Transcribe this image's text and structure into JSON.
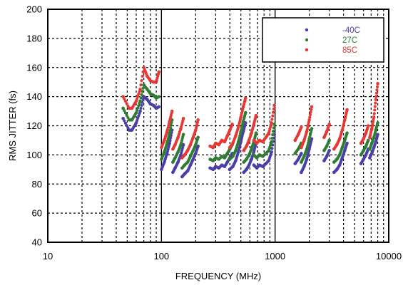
{
  "chart_data": {
    "type": "scatter",
    "title": "",
    "xlabel": "FREQUENCY (MHz)",
    "ylabel": "RMS JITTER (fs)",
    "x_scale": "log",
    "xlim": [
      10,
      10000
    ],
    "ylim": [
      40,
      200
    ],
    "x_ticks": [
      10,
      100,
      1000,
      10000
    ],
    "x_tick_labels": [
      "10",
      "100",
      "1000",
      "10000"
    ],
    "y_ticks": [
      40,
      60,
      80,
      100,
      120,
      140,
      160,
      180,
      200
    ],
    "y_tick_labels": [
      "40",
      "60",
      "80",
      "100",
      "120",
      "140",
      "160",
      "180",
      "200"
    ],
    "grid": "dotted",
    "legend_position": "top-right",
    "series": [
      {
        "name": "-40C",
        "color": "#4a3fa8",
        "segments": [
          {
            "x": [
              46,
              52,
              55,
              60,
              65,
              70,
              75,
              80,
              85,
              90,
              95
            ],
            "y": [
              125,
              117,
              117,
              122,
              130,
              140,
              138,
              135,
              134,
              132,
              133
            ]
          },
          {
            "x": [
              100,
              106,
              112,
              118,
              124
            ],
            "y": [
              90,
              95,
              101,
              108,
              117
            ]
          },
          {
            "x": [
              126,
              132,
              140,
              148,
              156
            ],
            "y": [
              88,
              91,
              95,
              100,
              107
            ]
          },
          {
            "x": [
              152,
              160,
              170,
              180,
              190,
              200,
              210
            ],
            "y": [
              85,
              87,
              89,
              93,
              97,
              101,
              106
            ]
          },
          {
            "x": [
              268,
              285,
              300,
              320,
              340,
              360,
              380,
              400,
              420
            ],
            "y": [
              91,
              90,
              92,
              91,
              93,
              92,
              95,
              98,
              101
            ]
          },
          {
            "x": [
              398,
              425,
              450,
              475,
              500,
              525,
              550
            ],
            "y": [
              90,
              92,
              96,
              102,
              109,
              116,
              122
            ]
          },
          {
            "x": [
              530,
              560,
              590,
              620,
              650,
              680
            ],
            "y": [
              88,
              90,
              93,
              97,
              102,
              108
            ]
          },
          {
            "x": [
              650,
              690,
              730,
              780,
              830,
              880,
              930,
              985
            ],
            "y": [
              93,
              91,
              93,
              92,
              94,
              96,
              102,
              114
            ]
          },
          {
            "x": [
              1700,
              1800,
              1900,
              2000,
              2100
            ],
            "y": [
              88,
              92,
              97,
              104,
              111
            ]
          },
          {
            "x": [
              1500,
              1600,
              1700
            ],
            "y": [
              94,
              97,
              101
            ]
          },
          {
            "x": [
              3300,
              3500,
              3700,
              3900,
              4100,
              4300
            ],
            "y": [
              88,
              90,
              93,
              98,
              103,
              108
            ]
          },
          {
            "x": [
              2700,
              2850,
              3000
            ],
            "y": [
              96,
              99,
              103
            ]
          },
          {
            "x": [
              5700,
              6000,
              6300,
              6600
            ],
            "y": [
              94,
              97,
              100,
              104
            ]
          },
          {
            "x": [
              6800,
              7100,
              7400,
              7700,
              8000
            ],
            "y": [
              98,
              101,
              105,
              109,
              114
            ]
          }
        ]
      },
      {
        "name": "27C",
        "color": "#2e7d32",
        "segments": [
          {
            "x": [
              46,
              52,
              55,
              60,
              65,
              70,
              75,
              80,
              85,
              90,
              95
            ],
            "y": [
              132,
              124,
              124,
              129,
              137,
              148,
              145,
              142,
              141,
              139,
              140
            ]
          },
          {
            "x": [
              100,
              106,
              112,
              118,
              124
            ],
            "y": [
              97,
              102,
              108,
              115,
              124
            ]
          },
          {
            "x": [
              126,
              132,
              140,
              148,
              156
            ],
            "y": [
              95,
              98,
              102,
              107,
              114
            ]
          },
          {
            "x": [
              152,
              160,
              170,
              180,
              190,
              200,
              210
            ],
            "y": [
              91,
              93,
              95,
              99,
              103,
              107,
              112
            ]
          },
          {
            "x": [
              268,
              285,
              300,
              320,
              340,
              360,
              380,
              400,
              420
            ],
            "y": [
              97,
              96,
              98,
              97,
              99,
              98,
              101,
              104,
              107
            ]
          },
          {
            "x": [
              398,
              425,
              450,
              475,
              500,
              525,
              550
            ],
            "y": [
              97,
              99,
              103,
              109,
              116,
              123,
              129
            ]
          },
          {
            "x": [
              530,
              560,
              590,
              620,
              650,
              680
            ],
            "y": [
              95,
              97,
              100,
              104,
              109,
              115
            ]
          },
          {
            "x": [
              650,
              690,
              730,
              780,
              830,
              880,
              930,
              985
            ],
            "y": [
              100,
              98,
              100,
              99,
              101,
              103,
              109,
              121
            ]
          },
          {
            "x": [
              1700,
              1800,
              1900,
              2000,
              2100
            ],
            "y": [
              95,
              99,
              104,
              111,
              118
            ]
          },
          {
            "x": [
              1500,
              1600,
              1700
            ],
            "y": [
              101,
              104,
              108
            ]
          },
          {
            "x": [
              3300,
              3500,
              3700,
              3900,
              4100,
              4300
            ],
            "y": [
              95,
              97,
              100,
              105,
              110,
              115
            ]
          },
          {
            "x": [
              2700,
              2850,
              3000
            ],
            "y": [
              103,
              106,
              110
            ]
          },
          {
            "x": [
              5700,
              6000,
              6300,
              6600
            ],
            "y": [
              100,
              103,
              106,
              110
            ]
          },
          {
            "x": [
              6800,
              7100,
              7400,
              7700,
              8000
            ],
            "y": [
              104,
              108,
              112,
              117,
              122
            ]
          }
        ]
      },
      {
        "name": "85C",
        "color": "#e53935",
        "segments": [
          {
            "x": [
              46,
              52,
              55,
              60,
              65,
              70,
              75,
              80,
              85,
              90,
              95
            ],
            "y": [
              140,
              132,
              132,
              137,
              145,
              160,
              154,
              151,
              150,
              150,
              157
            ]
          },
          {
            "x": [
              100,
              106,
              112,
              118,
              124
            ],
            "y": [
              105,
              110,
              116,
              123,
              130
            ]
          },
          {
            "x": [
              126,
              132,
              140,
              148,
              156
            ],
            "y": [
              104,
              107,
              112,
              118,
              125
            ]
          },
          {
            "x": [
              152,
              160,
              170,
              180,
              190,
              200,
              210
            ],
            "y": [
              98,
              100,
              103,
              107,
              112,
              117,
              124
            ]
          },
          {
            "x": [
              268,
              285,
              300,
              320,
              340,
              360,
              380,
              400,
              420
            ],
            "y": [
              106,
              105,
              108,
              107,
              110,
              109,
              113,
              117,
              121
            ]
          },
          {
            "x": [
              398,
              425,
              450,
              475,
              500,
              525,
              550
            ],
            "y": [
              105,
              108,
              113,
              119,
              126,
              133,
              139
            ]
          },
          {
            "x": [
              530,
              560,
              590,
              620,
              650,
              680
            ],
            "y": [
              103,
              106,
              110,
              115,
              121,
              127
            ]
          },
          {
            "x": [
              650,
              690,
              730,
              780,
              830,
              880,
              930,
              985
            ],
            "y": [
              110,
              108,
              110,
              109,
              112,
              115,
              122,
              134
            ]
          },
          {
            "x": [
              1700,
              1800,
              1900,
              2000,
              2100
            ],
            "y": [
              105,
              110,
              116,
              124,
              133
            ]
          },
          {
            "x": [
              1500,
              1600,
              1700
            ],
            "y": [
              110,
              114,
              119
            ]
          },
          {
            "x": [
              3300,
              3500,
              3700,
              3900,
              4100,
              4300
            ],
            "y": [
              104,
              107,
              111,
              117,
              124,
              131
            ]
          },
          {
            "x": [
              2700,
              2850,
              3000
            ],
            "y": [
              112,
              116,
              121
            ]
          },
          {
            "x": [
              5700,
              6000,
              6300,
              6600
            ],
            "y": [
              108,
              111,
              115,
              120
            ]
          },
          {
            "x": [
              6800,
              7100,
              7400,
              7700,
              8000
            ],
            "y": [
              112,
              118,
              126,
              138,
              149
            ]
          }
        ]
      }
    ]
  }
}
